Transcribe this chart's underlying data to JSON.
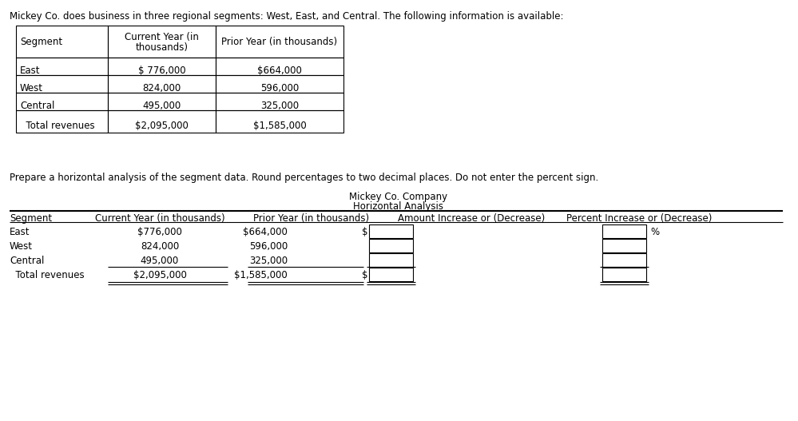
{
  "intro_text": "Mickey Co. does business in three regional segments: West, East, and Central. The following information is available:",
  "instruction_text": "Prepare a horizontal analysis of the segment data. Round percentages to two decimal places. Do not enter the percent sign.",
  "company_title1": "Mickey Co. Company",
  "company_title2": "Horizontal Analysis",
  "table1_rows": [
    [
      "Segment",
      "Current Year (in\nthousands)",
      "Prior Year (in thousands)"
    ],
    [
      "East",
      "$ 776,000",
      "$664,000"
    ],
    [
      "West",
      "824,000",
      "596,000"
    ],
    [
      "Central",
      "495,000",
      "325,000"
    ],
    [
      "  Total revenues",
      "$2,095,000",
      "$1,585,000"
    ]
  ],
  "table2_headers": [
    "Segment",
    "Current Year (in thousands)",
    "Prior Year (in thousands)",
    "Amount Increase or (Decrease)",
    "Percent Increase or (Decrease)"
  ],
  "table2_rows": [
    [
      "East",
      "$776,000",
      "$664,000",
      "$",
      "%"
    ],
    [
      "West",
      "824,000",
      "596,000",
      "",
      ""
    ],
    [
      "Central",
      "495,000",
      "325,000",
      "",
      ""
    ],
    [
      "  Total revenues",
      "$2,095,000",
      "$1,585,000",
      "$",
      ""
    ]
  ],
  "bg_color": "#ffffff",
  "text_color": "#000000"
}
